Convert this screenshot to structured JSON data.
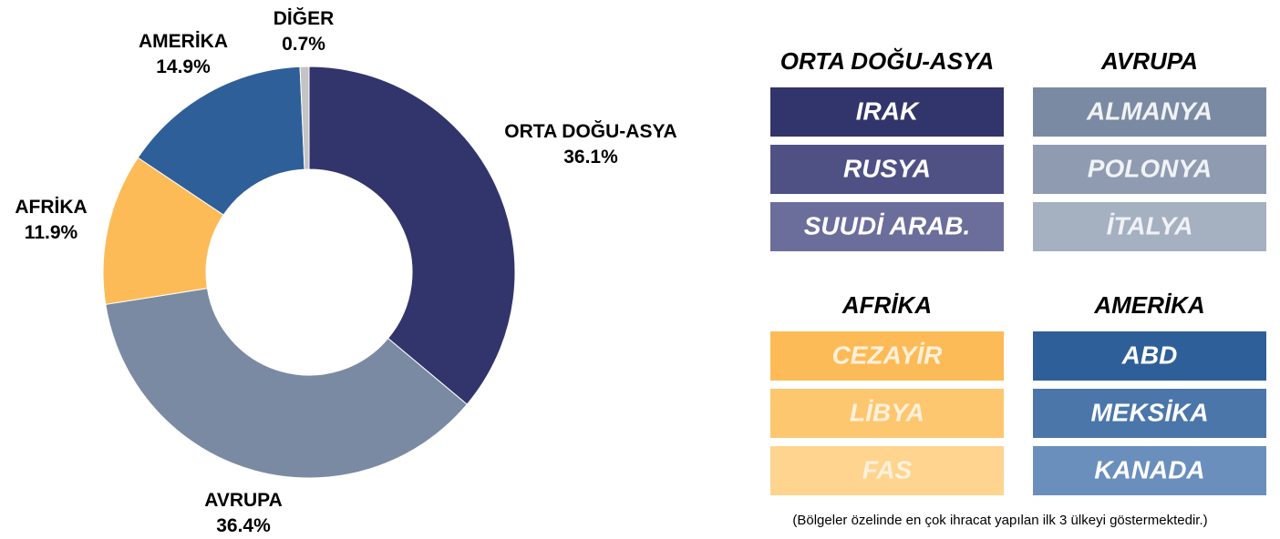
{
  "chart_data": {
    "type": "pie",
    "categories": [
      "ORTA DOĞU-ASYA",
      "AVRUPA",
      "AFRİKA",
      "AMERİKA",
      "DİĞER"
    ],
    "values": [
      36.1,
      36.4,
      11.9,
      14.9,
      0.7
    ],
    "value_labels": [
      "36.1%",
      "36.4%",
      "11.9%",
      "14.9%",
      "0.7%"
    ],
    "colors": [
      "#31356b",
      "#7a8aa3",
      "#fdbb57",
      "#2e5f98",
      "#c4c4c4"
    ]
  },
  "regions": [
    {
      "title": "ORTA DOĞU-ASYA",
      "countries": [
        "IRAK",
        "RUSYA",
        "SUUDİ ARAB."
      ],
      "colors": [
        "#31356b",
        "#4f5185",
        "#6b6e9b"
      ],
      "text_color": "#ffffff"
    },
    {
      "title": "AVRUPA",
      "countries": [
        "ALMANYA",
        "POLONYA",
        "İTALYA"
      ],
      "colors": [
        "#7a8aa3",
        "#8e9bb1",
        "#a5b0c1"
      ],
      "text_color": "#f0f2f6"
    },
    {
      "title": "AFRİKA",
      "countries": [
        "CEZAYİR",
        "LİBYA",
        "FAS"
      ],
      "colors": [
        "#fdbb57",
        "#fdc76f",
        "#fed48f"
      ],
      "text_color": "#fef1dc"
    },
    {
      "title": "AMERİKA",
      "countries": [
        "ABD",
        "MEKSİKA",
        "KANADA"
      ],
      "colors": [
        "#2e5f98",
        "#4a76aa",
        "#6a8fbd"
      ],
      "text_color": "#ffffff"
    }
  ],
  "note": "(Bölgeler özelinde en çok ihracat yapılan ilk 3 ülkeyi göstermektedir.)"
}
